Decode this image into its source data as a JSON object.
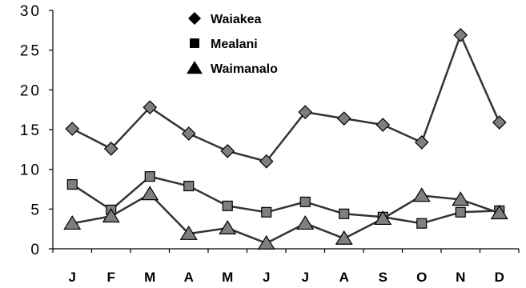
{
  "chart_data": {
    "type": "line",
    "title": "",
    "xlabel": "",
    "ylabel": "",
    "categories": [
      "J",
      "F",
      "M",
      "A",
      "M",
      "J",
      "J",
      "A",
      "S",
      "O",
      "N",
      "D"
    ],
    "ylim": [
      0,
      30
    ],
    "yticks": [
      "0",
      "5",
      "10",
      "15",
      "20",
      "25",
      "30"
    ],
    "grid": false,
    "legend_position": "top-center",
    "series": [
      {
        "name": "Waiakea",
        "marker": "diamond",
        "values": [
          15.1,
          12.6,
          17.8,
          14.5,
          12.3,
          11.0,
          17.2,
          16.4,
          15.6,
          13.4,
          26.9,
          15.9
        ]
      },
      {
        "name": "Mealani",
        "marker": "square",
        "values": [
          8.1,
          4.9,
          9.1,
          7.9,
          5.4,
          4.6,
          5.9,
          4.4,
          4.0,
          3.2,
          4.6,
          4.8
        ]
      },
      {
        "name": "Waimanalo",
        "marker": "triangle",
        "values": [
          3.2,
          4.1,
          6.9,
          1.9,
          2.6,
          0.7,
          3.2,
          1.3,
          3.8,
          6.7,
          6.2,
          4.5
        ]
      }
    ],
    "colors": {
      "line": "#333333",
      "marker_fill": "#7f7f7f",
      "legend_marker": "#000000"
    }
  }
}
